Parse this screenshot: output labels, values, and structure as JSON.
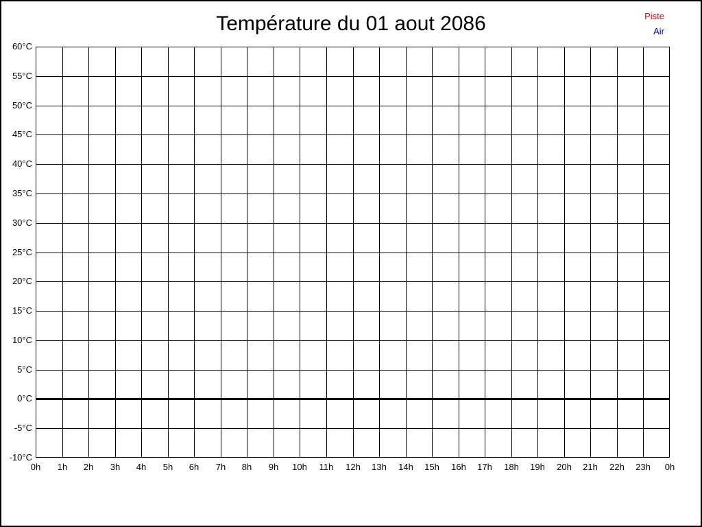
{
  "title": "Température du 01 aout 2086",
  "legend": {
    "items": [
      {
        "label": "Piste",
        "color": "#e00000"
      },
      {
        "label": "Air",
        "color": "#0000cc"
      }
    ]
  },
  "chart_data": {
    "type": "line",
    "title": "Température du 01 aout 2086",
    "xlabel": "",
    "ylabel": "",
    "ylim": [
      -10,
      60
    ],
    "grid": true,
    "legend_position": "top-right",
    "zero_line_value": 0,
    "y_ticks": [
      {
        "value": 60,
        "label": "60°C"
      },
      {
        "value": 55,
        "label": "55°C"
      },
      {
        "value": 50,
        "label": "50°C"
      },
      {
        "value": 45,
        "label": "45°C"
      },
      {
        "value": 40,
        "label": "40°C"
      },
      {
        "value": 35,
        "label": "35°C"
      },
      {
        "value": 30,
        "label": "30°C"
      },
      {
        "value": 25,
        "label": "25°C"
      },
      {
        "value": 20,
        "label": "20°C"
      },
      {
        "value": 15,
        "label": "15°C"
      },
      {
        "value": 10,
        "label": "10°C"
      },
      {
        "value": 5,
        "label": "5°C"
      },
      {
        "value": 0,
        "label": "0°C"
      },
      {
        "value": -5,
        "label": "-5°C"
      },
      {
        "value": -10,
        "label": "-10°C"
      }
    ],
    "x_tick_labels": [
      "0h",
      "1h",
      "2h",
      "3h",
      "4h",
      "5h",
      "6h",
      "7h",
      "8h",
      "9h",
      "10h",
      "11h",
      "12h",
      "13h",
      "14h",
      "15h",
      "16h",
      "17h",
      "18h",
      "19h",
      "20h",
      "21h",
      "22h",
      "23h",
      "0h"
    ],
    "series": [
      {
        "name": "Piste",
        "color": "#e00000",
        "values": []
      },
      {
        "name": "Air",
        "color": "#0000cc",
        "values": []
      }
    ]
  }
}
